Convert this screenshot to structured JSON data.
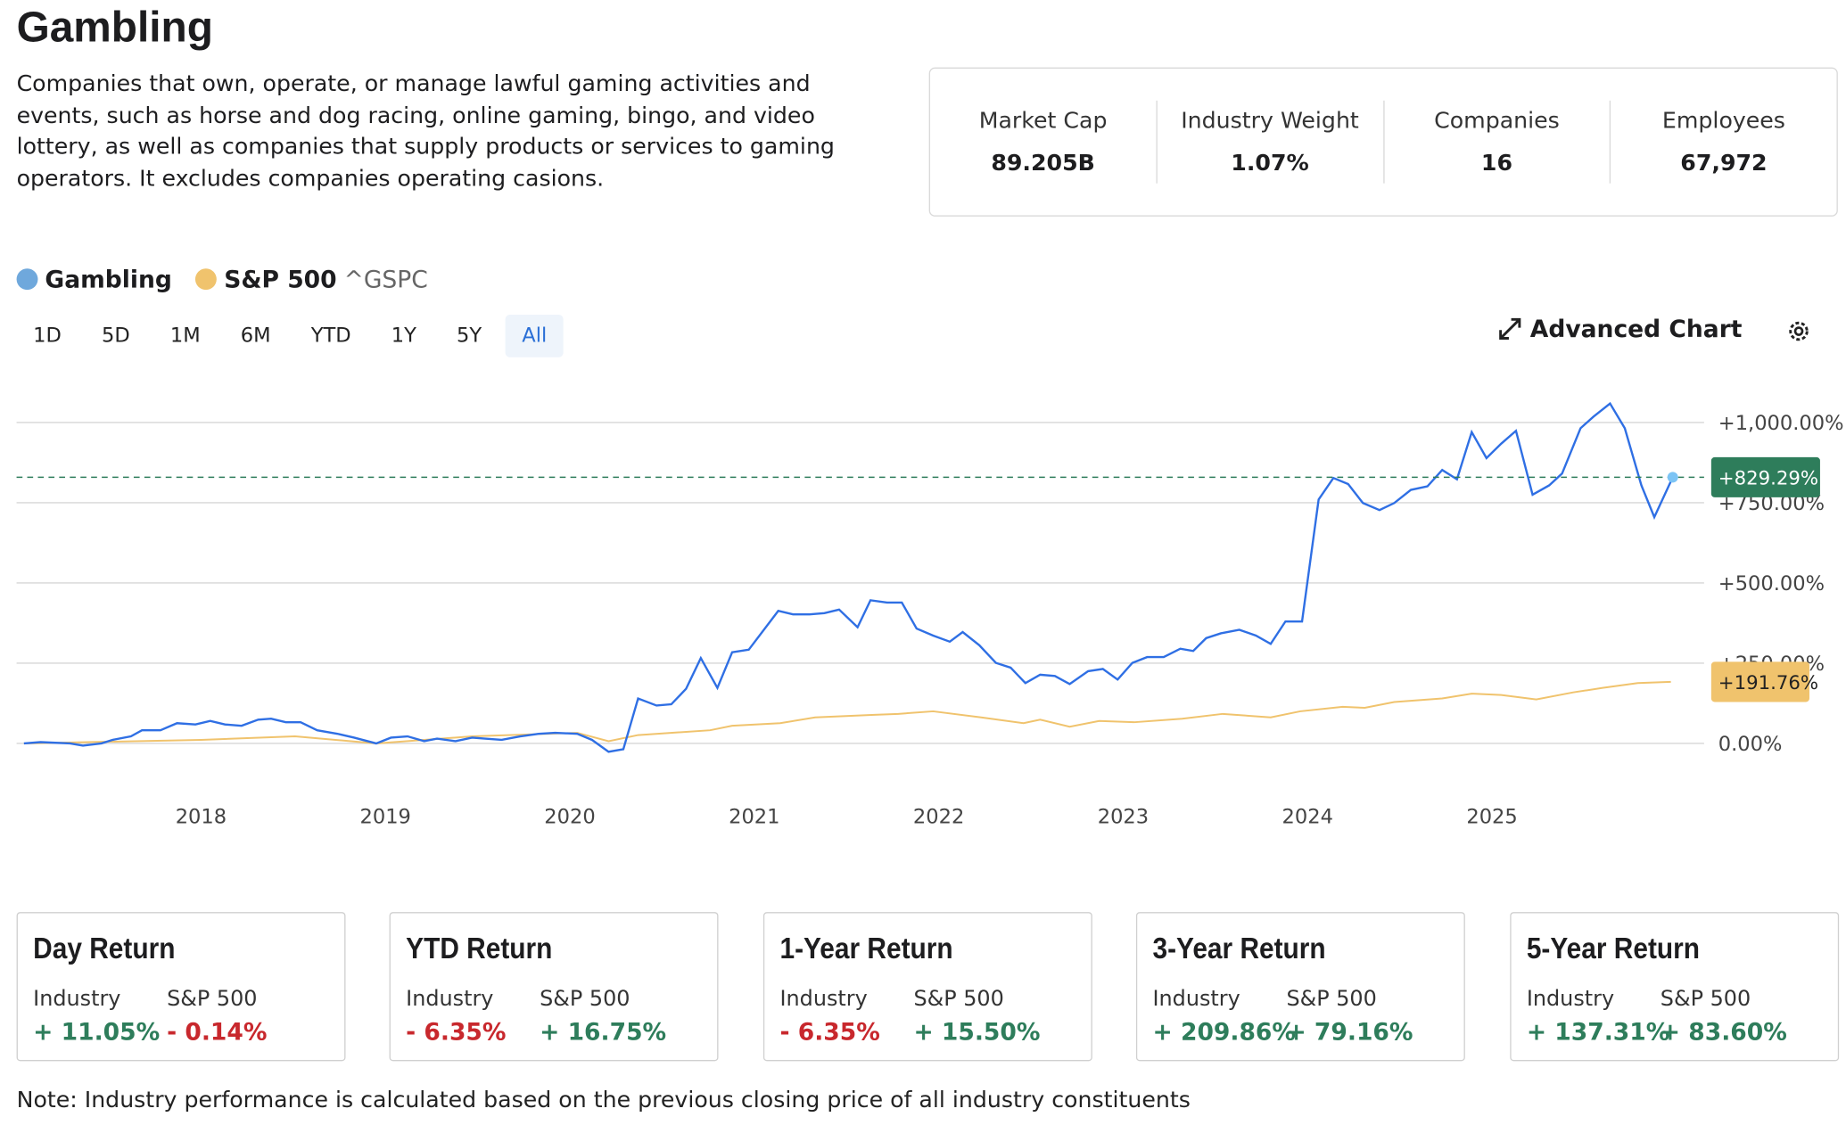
{
  "header": {
    "title": "Gambling",
    "description": "Companies that own, operate, or manage lawful gaming activities and events, such as horse and dog racing, online gaming, bingo, and video lottery, as well as companies that supply products or services to gaming operators. It excludes companies operating casions."
  },
  "stats": [
    {
      "label": "Market Cap",
      "value": "89.205B"
    },
    {
      "label": "Industry Weight",
      "value": "1.07%"
    },
    {
      "label": "Companies",
      "value": "16"
    },
    {
      "label": "Employees",
      "value": "67,972"
    }
  ],
  "legend": {
    "ticker": "^GSPC"
  },
  "ranges": [
    "1D",
    "5D",
    "1M",
    "6M",
    "YTD",
    "1Y",
    "5Y",
    "All"
  ],
  "selected_range": "All",
  "advanced_chart": "Advanced Chart",
  "chart_data": {
    "type": "line",
    "xlim": [
      2017,
      2026.15
    ],
    "xticks": [
      2018,
      2019,
      2020,
      2021,
      2022,
      2023,
      2024,
      2025
    ],
    "ylim": [
      -120,
      1100
    ],
    "yticks": [
      {
        "value": 0,
        "label": "0.00%"
      },
      {
        "value": 250,
        "label": "+250.00%"
      },
      {
        "value": 500,
        "label": "+500.00%"
      },
      {
        "value": 750,
        "label": "+750.00%"
      },
      {
        "value": 1000,
        "label": "+1,000.00%"
      }
    ],
    "grid": true,
    "series": [
      {
        "name": "Gambling",
        "color": "#2f6fe4",
        "legend_color": "#6fa8dc",
        "badge_color": "#2e7d5b",
        "last_label": "+829.29%",
        "x": [
          2017.04,
          2017.13,
          2017.29,
          2017.36,
          2017.46,
          2017.52,
          2017.62,
          2017.68,
          2017.78,
          2017.87,
          2017.97,
          2018.05,
          2018.13,
          2018.22,
          2018.31,
          2018.38,
          2018.46,
          2018.54,
          2018.63,
          2018.74,
          2018.83,
          2018.95,
          2019.03,
          2019.12,
          2019.21,
          2019.28,
          2019.38,
          2019.47,
          2019.54,
          2019.63,
          2019.73,
          2019.83,
          2019.92,
          2020.04,
          2020.12,
          2020.21,
          2020.29,
          2020.37,
          2020.47,
          2020.55,
          2020.63,
          2020.71,
          2020.8,
          2020.88,
          2020.97,
          2021.13,
          2021.21,
          2021.3,
          2021.38,
          2021.46,
          2021.56,
          2021.63,
          2021.72,
          2021.8,
          2021.88,
          2021.97,
          2022.06,
          2022.13,
          2022.22,
          2022.31,
          2022.39,
          2022.47,
          2022.55,
          2022.63,
          2022.71,
          2022.81,
          2022.89,
          2022.97,
          2023.05,
          2023.13,
          2023.22,
          2023.31,
          2023.38,
          2023.45,
          2023.53,
          2023.63,
          2023.72,
          2023.8,
          2023.88,
          2023.97,
          2024.06,
          2024.14,
          2024.22,
          2024.3,
          2024.39,
          2024.47,
          2024.56,
          2024.65,
          2024.73,
          2024.81,
          2024.89,
          2024.97,
          2025.05,
          2025.13,
          2025.22,
          2025.31,
          2025.38,
          2025.48,
          2025.55,
          2025.64,
          2025.72,
          2025.81,
          2025.88,
          2025.98
        ],
        "values": [
          0,
          4,
          0,
          -7,
          0,
          11,
          22,
          41,
          41,
          63,
          59,
          70,
          59,
          55,
          74,
          77,
          66,
          66,
          41,
          30,
          18,
          0,
          18,
          22,
          7,
          15,
          7,
          18,
          15,
          11,
          22,
          30,
          33,
          30,
          11,
          -26,
          -18,
          140,
          118,
          122,
          170,
          266,
          173,
          284,
          292,
          413,
          402,
          402,
          406,
          417,
          362,
          446,
          439,
          439,
          358,
          336,
          317,
          347,
          306,
          251,
          236,
          188,
          214,
          210,
          185,
          225,
          232,
          199,
          251,
          269,
          269,
          295,
          288,
          328,
          343,
          354,
          336,
          310,
          380,
          380,
          760,
          827,
          808,
          749,
          727,
          749,
          790,
          801,
          852,
          823,
          970,
          889,
          934,
          974,
          775,
          804,
          841,
          982,
          1018,
          1059,
          982,
          804,
          705,
          829.29
        ]
      },
      {
        "name": "S&P 500",
        "color": "#f0c36d",
        "legend_color": "#f0c36d",
        "badge_color": "#f0c36d",
        "last_label": "+191.76%",
        "x": [
          2017.04,
          2018.0,
          2018.51,
          2018.95,
          2019.47,
          2020.04,
          2020.21,
          2020.37,
          2020.76,
          2020.88,
          2021.14,
          2021.33,
          2021.65,
          2021.78,
          2021.97,
          2022.23,
          2022.46,
          2022.55,
          2022.71,
          2022.87,
          2023.06,
          2023.32,
          2023.54,
          2023.8,
          2023.96,
          2024.19,
          2024.31,
          2024.47,
          2024.73,
          2024.89,
          2025.05,
          2025.24,
          2025.44,
          2025.6,
          2025.79,
          2025.97
        ],
        "values": [
          0,
          11,
          22,
          0,
          22,
          33,
          7,
          26,
          41,
          55,
          63,
          81,
          89,
          92,
          100,
          81,
          63,
          74,
          52,
          70,
          66,
          77,
          92,
          81,
          100,
          114,
          111,
          129,
          140,
          155,
          151,
          137,
          159,
          173,
          188,
          191.76
        ]
      }
    ]
  },
  "returns": [
    {
      "title": "Day Return",
      "industry_label": "Industry",
      "sp_label": "S&P 500",
      "industry": "+ 11.05%",
      "sp": "- 0.14%"
    },
    {
      "title": "YTD Return",
      "industry_label": "Industry",
      "sp_label": "S&P 500",
      "industry": "- 6.35%",
      "sp": "+ 16.75%"
    },
    {
      "title": "1-Year Return",
      "industry_label": "Industry",
      "sp_label": "S&P 500",
      "industry": "- 6.35%",
      "sp": "+ 15.50%"
    },
    {
      "title": "3-Year Return",
      "industry_label": "Industry",
      "sp_label": "S&P 500",
      "industry": "+ 209.86%",
      "sp": "+ 79.16%"
    },
    {
      "title": "5-Year Return",
      "industry_label": "Industry",
      "sp_label": "S&P 500",
      "industry": "+ 137.31%",
      "sp": "+ 83.60%"
    }
  ],
  "note": "Note: Industry performance is calculated based on the previous closing price of all industry constituents"
}
